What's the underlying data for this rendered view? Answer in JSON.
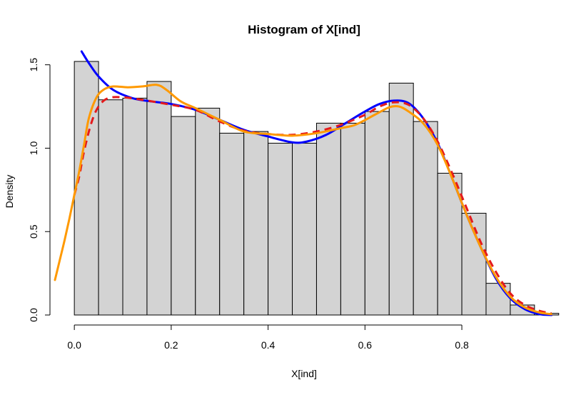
{
  "chart_data": {
    "type": "histogram",
    "title": "Histogram of X[ind]",
    "xlabel": "X[ind]",
    "ylabel": "Density",
    "xlim": [
      -0.04,
      0.99
    ],
    "ylim": [
      0,
      1.58
    ],
    "x_ticks": [
      0.0,
      0.2,
      0.4,
      0.6,
      0.8
    ],
    "x_tick_labels": [
      "0.0",
      "0.2",
      "0.4",
      "0.6",
      "0.8"
    ],
    "y_ticks": [
      0.0,
      0.5,
      1.0,
      1.5
    ],
    "y_tick_labels": [
      "0.0",
      "0.5",
      "1.0",
      "1.5"
    ],
    "grid": false,
    "bar_color": "#d3d3d3",
    "bins": [
      {
        "x0": 0.0,
        "x1": 0.05,
        "density": 1.52
      },
      {
        "x0": 0.05,
        "x1": 0.1,
        "density": 1.29
      },
      {
        "x0": 0.1,
        "x1": 0.15,
        "density": 1.3
      },
      {
        "x0": 0.15,
        "x1": 0.2,
        "density": 1.4
      },
      {
        "x0": 0.2,
        "x1": 0.25,
        "density": 1.19
      },
      {
        "x0": 0.25,
        "x1": 0.3,
        "density": 1.24
      },
      {
        "x0": 0.3,
        "x1": 0.35,
        "density": 1.09
      },
      {
        "x0": 0.35,
        "x1": 0.4,
        "density": 1.1
      },
      {
        "x0": 0.4,
        "x1": 0.45,
        "density": 1.03
      },
      {
        "x0": 0.45,
        "x1": 0.5,
        "density": 1.03
      },
      {
        "x0": 0.5,
        "x1": 0.55,
        "density": 1.15
      },
      {
        "x0": 0.55,
        "x1": 0.6,
        "density": 1.15
      },
      {
        "x0": 0.6,
        "x1": 0.65,
        "density": 1.22
      },
      {
        "x0": 0.65,
        "x1": 0.7,
        "density": 1.39
      },
      {
        "x0": 0.7,
        "x1": 0.75,
        "density": 1.16
      },
      {
        "x0": 0.75,
        "x1": 0.8,
        "density": 0.85
      },
      {
        "x0": 0.8,
        "x1": 0.85,
        "density": 0.61
      },
      {
        "x0": 0.85,
        "x1": 0.9,
        "density": 0.19
      },
      {
        "x0": 0.9,
        "x1": 0.95,
        "density": 0.06
      },
      {
        "x0": 0.95,
        "x1": 1.0,
        "density": 0.01
      }
    ],
    "series": [
      {
        "color": "#0000ff",
        "style": "solid",
        "points": [
          [
            0.015,
            1.58
          ],
          [
            0.03,
            1.51
          ],
          [
            0.05,
            1.43
          ],
          [
            0.08,
            1.35
          ],
          [
            0.12,
            1.3
          ],
          [
            0.16,
            1.28
          ],
          [
            0.2,
            1.265
          ],
          [
            0.25,
            1.23
          ],
          [
            0.3,
            1.17
          ],
          [
            0.35,
            1.11
          ],
          [
            0.4,
            1.07
          ],
          [
            0.45,
            1.035
          ],
          [
            0.48,
            1.04
          ],
          [
            0.52,
            1.08
          ],
          [
            0.56,
            1.15
          ],
          [
            0.6,
            1.22
          ],
          [
            0.63,
            1.265
          ],
          [
            0.66,
            1.285
          ],
          [
            0.69,
            1.27
          ],
          [
            0.72,
            1.18
          ],
          [
            0.75,
            1.03
          ],
          [
            0.78,
            0.82
          ],
          [
            0.81,
            0.6
          ],
          [
            0.84,
            0.4
          ],
          [
            0.87,
            0.22
          ],
          [
            0.9,
            0.1
          ],
          [
            0.93,
            0.035
          ],
          [
            0.96,
            0.005
          ],
          [
            0.985,
            0.0
          ]
        ]
      },
      {
        "color": "#e41a1c",
        "style": "dashed",
        "points": [
          [
            0.0,
            0.72
          ],
          [
            0.01,
            0.83
          ],
          [
            0.02,
            0.98
          ],
          [
            0.035,
            1.15
          ],
          [
            0.05,
            1.25
          ],
          [
            0.07,
            1.3
          ],
          [
            0.1,
            1.305
          ],
          [
            0.14,
            1.29
          ],
          [
            0.2,
            1.26
          ],
          [
            0.25,
            1.23
          ],
          [
            0.3,
            1.16
          ],
          [
            0.35,
            1.105
          ],
          [
            0.4,
            1.085
          ],
          [
            0.45,
            1.08
          ],
          [
            0.5,
            1.1
          ],
          [
            0.55,
            1.14
          ],
          [
            0.6,
            1.2
          ],
          [
            0.63,
            1.25
          ],
          [
            0.66,
            1.275
          ],
          [
            0.69,
            1.26
          ],
          [
            0.72,
            1.18
          ],
          [
            0.75,
            1.04
          ],
          [
            0.78,
            0.85
          ],
          [
            0.81,
            0.64
          ],
          [
            0.84,
            0.43
          ],
          [
            0.87,
            0.26
          ],
          [
            0.9,
            0.13
          ],
          [
            0.93,
            0.06
          ],
          [
            0.96,
            0.025
          ],
          [
            0.985,
            0.01
          ]
        ]
      },
      {
        "color": "#ff9900",
        "style": "solid",
        "points": [
          [
            -0.04,
            0.21
          ],
          [
            -0.03,
            0.33
          ],
          [
            -0.02,
            0.45
          ],
          [
            -0.01,
            0.58
          ],
          [
            0.0,
            0.72
          ],
          [
            0.01,
            0.86
          ],
          [
            0.02,
            1.02
          ],
          [
            0.03,
            1.18
          ],
          [
            0.045,
            1.3
          ],
          [
            0.06,
            1.35
          ],
          [
            0.08,
            1.37
          ],
          [
            0.11,
            1.365
          ],
          [
            0.14,
            1.37
          ],
          [
            0.17,
            1.38
          ],
          [
            0.19,
            1.35
          ],
          [
            0.22,
            1.28
          ],
          [
            0.25,
            1.24
          ],
          [
            0.3,
            1.17
          ],
          [
            0.35,
            1.1
          ],
          [
            0.4,
            1.085
          ],
          [
            0.45,
            1.075
          ],
          [
            0.5,
            1.09
          ],
          [
            0.55,
            1.12
          ],
          [
            0.58,
            1.14
          ],
          [
            0.62,
            1.2
          ],
          [
            0.65,
            1.245
          ],
          [
            0.67,
            1.25
          ],
          [
            0.69,
            1.22
          ],
          [
            0.72,
            1.15
          ],
          [
            0.75,
            1.02
          ],
          [
            0.78,
            0.82
          ],
          [
            0.81,
            0.6
          ],
          [
            0.84,
            0.4
          ],
          [
            0.87,
            0.23
          ],
          [
            0.9,
            0.11
          ],
          [
            0.93,
            0.045
          ],
          [
            0.96,
            0.015
          ],
          [
            0.985,
            0.005
          ]
        ]
      }
    ]
  }
}
